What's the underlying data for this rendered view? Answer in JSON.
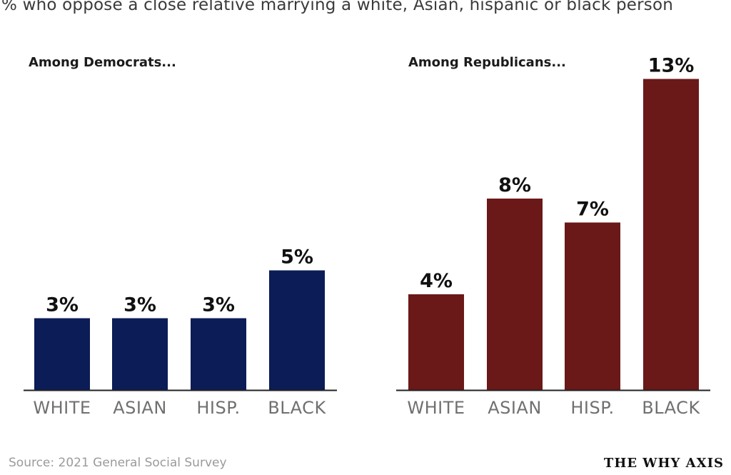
{
  "title": "% who oppose a close relative marrying a white, Asian, hispanic or black person",
  "source": "Source: 2021 General Social Survey",
  "brand": "THE WHY AXIS",
  "colors": {
    "democrats": "#0b1c56",
    "republicans": "#6b1818",
    "axis": "#222222"
  },
  "chart_data": [
    {
      "type": "bar",
      "title": "Among Democrats...",
      "categories": [
        "WHITE",
        "ASIAN",
        "HISP.",
        "BLACK"
      ],
      "values": [
        3,
        3,
        3,
        5
      ],
      "value_labels": [
        "3%",
        "3%",
        "3%",
        "5%"
      ],
      "color_key": "democrats",
      "grid": false
    },
    {
      "type": "bar",
      "title": "Among Republicans...",
      "categories": [
        "WHITE",
        "ASIAN",
        "HISP.",
        "BLACK"
      ],
      "values": [
        4,
        8,
        7,
        13
      ],
      "value_labels": [
        "4%",
        "8%",
        "7%",
        "13%"
      ],
      "color_key": "republicans",
      "grid": false
    }
  ]
}
